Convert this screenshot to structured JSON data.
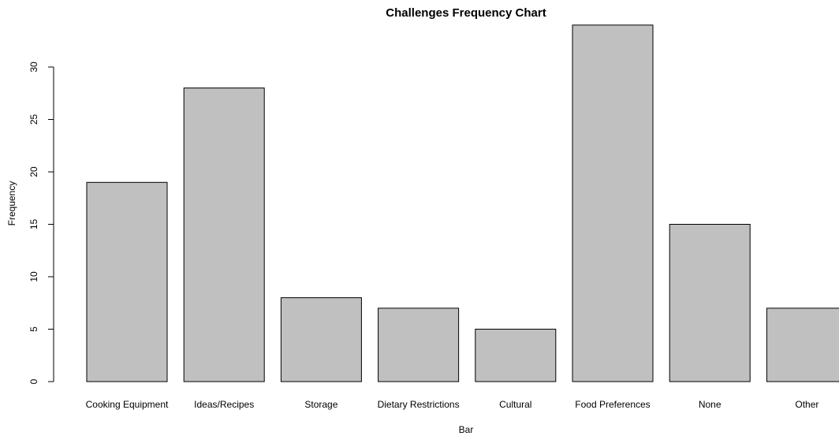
{
  "chart_data": {
    "type": "bar",
    "title": "Challenges Frequency Chart",
    "xlabel": "Bar",
    "ylabel": "Frequency",
    "categories": [
      "Cooking Equipment",
      "Ideas/Recipes",
      "Storage",
      "Dietary Restrictions",
      "Cultural",
      "Food Preferences",
      "None",
      "Other"
    ],
    "values": [
      19,
      28,
      8,
      7,
      5,
      34,
      15,
      7
    ],
    "yticks": [
      "0",
      "5",
      "10",
      "15",
      "20",
      "25",
      "30"
    ],
    "ylim": [
      0,
      34
    ],
    "grid": false,
    "bar_color": "#c0c0c0",
    "bar_border_color": "#000000"
  }
}
